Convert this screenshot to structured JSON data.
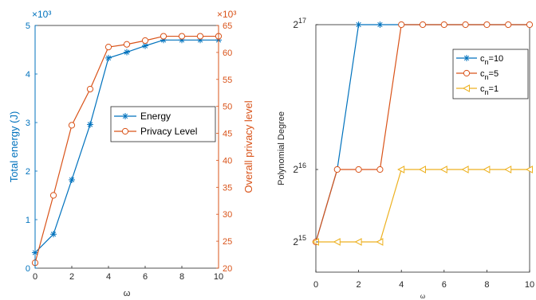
{
  "chart_data": [
    {
      "type": "line",
      "x": [
        0,
        1,
        2,
        3,
        4,
        5,
        6,
        7,
        8,
        9,
        10
      ],
      "xlabel": "ω",
      "xlim": [
        0,
        10
      ],
      "xticks": [
        "0",
        "2",
        "4",
        "6",
        "8",
        "10"
      ],
      "ylabel": "Total energy (J)",
      "ylim": [
        0,
        5
      ],
      "yticks": [
        "0",
        "1",
        "2",
        "3",
        "4",
        "5"
      ],
      "y_exponent": "×10³",
      "y2label": "Overall privacy level",
      "y2lim": [
        20,
        65
      ],
      "y2ticks": [
        "20",
        "25",
        "30",
        "35",
        "40",
        "45",
        "50",
        "55",
        "60",
        "65"
      ],
      "y2_exponent": "×10³",
      "grid": false,
      "legend_position": "center-right",
      "series": [
        {
          "name": "Energy",
          "axis": "left",
          "marker": "star",
          "color": "#0072BD",
          "values": [
            0.32,
            0.7,
            1.82,
            2.96,
            4.33,
            4.45,
            4.58,
            4.7,
            4.7,
            4.7,
            4.7
          ]
        },
        {
          "name": "Privacy Level",
          "axis": "right",
          "marker": "circle",
          "color": "#D95319",
          "values": [
            21,
            33.5,
            46.5,
            53.2,
            61,
            61.5,
            62.2,
            63,
            63,
            63,
            63
          ]
        }
      ]
    },
    {
      "type": "line",
      "x": [
        0,
        1,
        2,
        3,
        4,
        5,
        6,
        7,
        8,
        9,
        10
      ],
      "xlabel": "ω",
      "xlim": [
        0,
        10
      ],
      "xticks": [
        "0",
        "2",
        "4",
        "6",
        "8",
        "10"
      ],
      "ylabel": "Polynomial Degree",
      "yscale": "log2",
      "ylim_exponent": [
        15,
        17
      ],
      "yticks": [
        {
          "base": "2",
          "exp": "15"
        },
        {
          "base": "2",
          "exp": "16"
        },
        {
          "base": "2",
          "exp": "17"
        }
      ],
      "grid": false,
      "legend_position": "top-right",
      "series": [
        {
          "name_base": "c",
          "name_sub": "n",
          "name_rest": "=10",
          "marker": "star",
          "color": "#0072BD",
          "values": [
            15,
            16,
            17,
            17,
            17,
            17,
            17,
            17,
            17,
            17,
            17
          ]
        },
        {
          "name_base": "c",
          "name_sub": "n",
          "name_rest": "=5",
          "marker": "circle",
          "color": "#D95319",
          "values": [
            15,
            16,
            16,
            16,
            17,
            17,
            17,
            17,
            17,
            17,
            17
          ]
        },
        {
          "name_base": "c",
          "name_sub": "n",
          "name_rest": "=1",
          "marker": "triangle-left",
          "color": "#EDB120",
          "values": [
            15,
            15,
            15,
            15,
            16,
            16,
            16,
            16,
            16,
            16,
            16
          ]
        }
      ]
    }
  ]
}
